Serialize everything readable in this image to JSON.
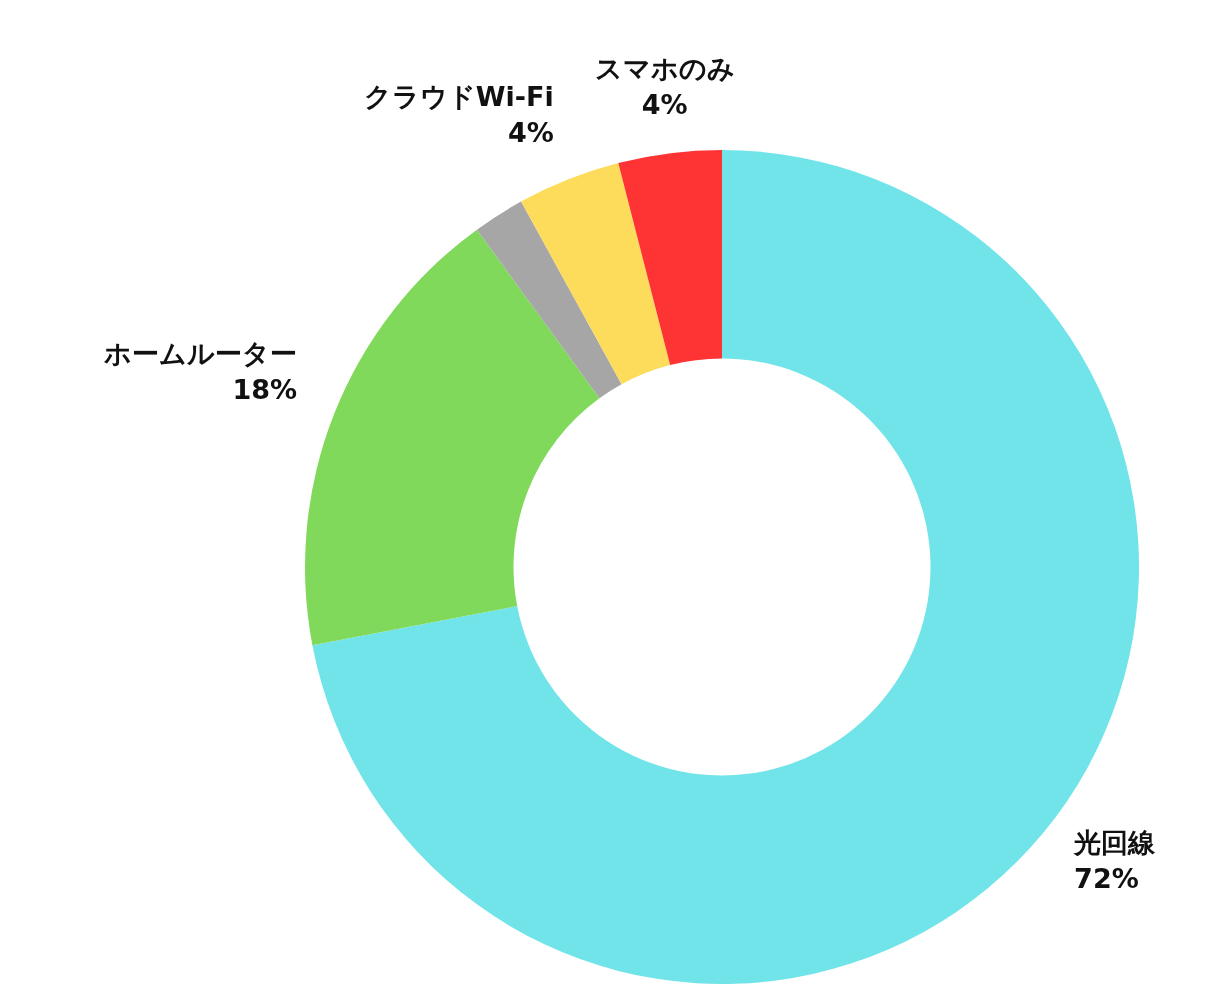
{
  "chart_data": {
    "type": "donut",
    "categories": [
      "光回線",
      "ホームルーター",
      null,
      "クラウドWi-Fi",
      "スマホのみ"
    ],
    "values": [
      72,
      18,
      2,
      4,
      4
    ],
    "colors": [
      "#70e4e8",
      "#80d95a",
      "#a6a6a6",
      "#fddc5c",
      "#fe3334"
    ],
    "value_labels": [
      "72%",
      "18%",
      null,
      "4%",
      "4%"
    ]
  }
}
